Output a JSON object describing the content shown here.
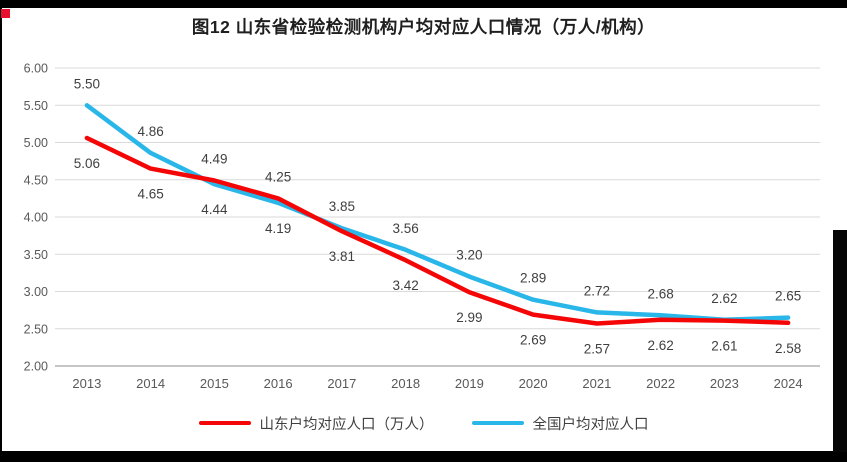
{
  "title": "图12 山东省检验检测机构户均对应人口情况（万人/机构）",
  "colors": {
    "shandong": "#f40606",
    "national": "#29b6e8",
    "grid": "#d9d9d9",
    "axis_line": "#b3b3b3",
    "tick_text": "#595959",
    "data_label_text": "#404040",
    "title_text": "#1f1f1f",
    "frame": "#000000",
    "red_marker": "#e8112d"
  },
  "legend": {
    "items": [
      {
        "key": "shandong",
        "label": "山东户均对应人口（万人）"
      },
      {
        "key": "national",
        "label": "全国户均对应人口"
      }
    ]
  },
  "chart_data": {
    "type": "line",
    "title": "图12 山东省检验检测机构户均对应人口情况（万人/机构）",
    "categories": [
      "2013",
      "2014",
      "2015",
      "2016",
      "2017",
      "2018",
      "2019",
      "2020",
      "2021",
      "2022",
      "2023",
      "2024"
    ],
    "series": [
      {
        "name": "山东户均对应人口（万人）",
        "key": "shandong",
        "values": [
          5.06,
          4.65,
          4.49,
          4.25,
          3.81,
          3.42,
          2.99,
          2.69,
          2.57,
          2.62,
          2.61,
          2.58
        ]
      },
      {
        "name": "全国户均对应人口",
        "key": "national",
        "values": [
          5.5,
          4.86,
          4.44,
          4.19,
          3.85,
          3.56,
          3.2,
          2.89,
          2.72,
          2.68,
          2.62,
          2.65
        ]
      }
    ],
    "ylim": [
      2.0,
      6.0
    ],
    "yticks": [
      "2.00",
      "2.50",
      "3.00",
      "3.50",
      "4.00",
      "4.50",
      "5.00",
      "5.50",
      "6.00"
    ],
    "xlabel": "",
    "ylabel": "",
    "grid": true,
    "legend_position": "bottom",
    "data_label_format": "0.00",
    "data_label_rule": "higher series labeled above point, lower series labeled below"
  }
}
